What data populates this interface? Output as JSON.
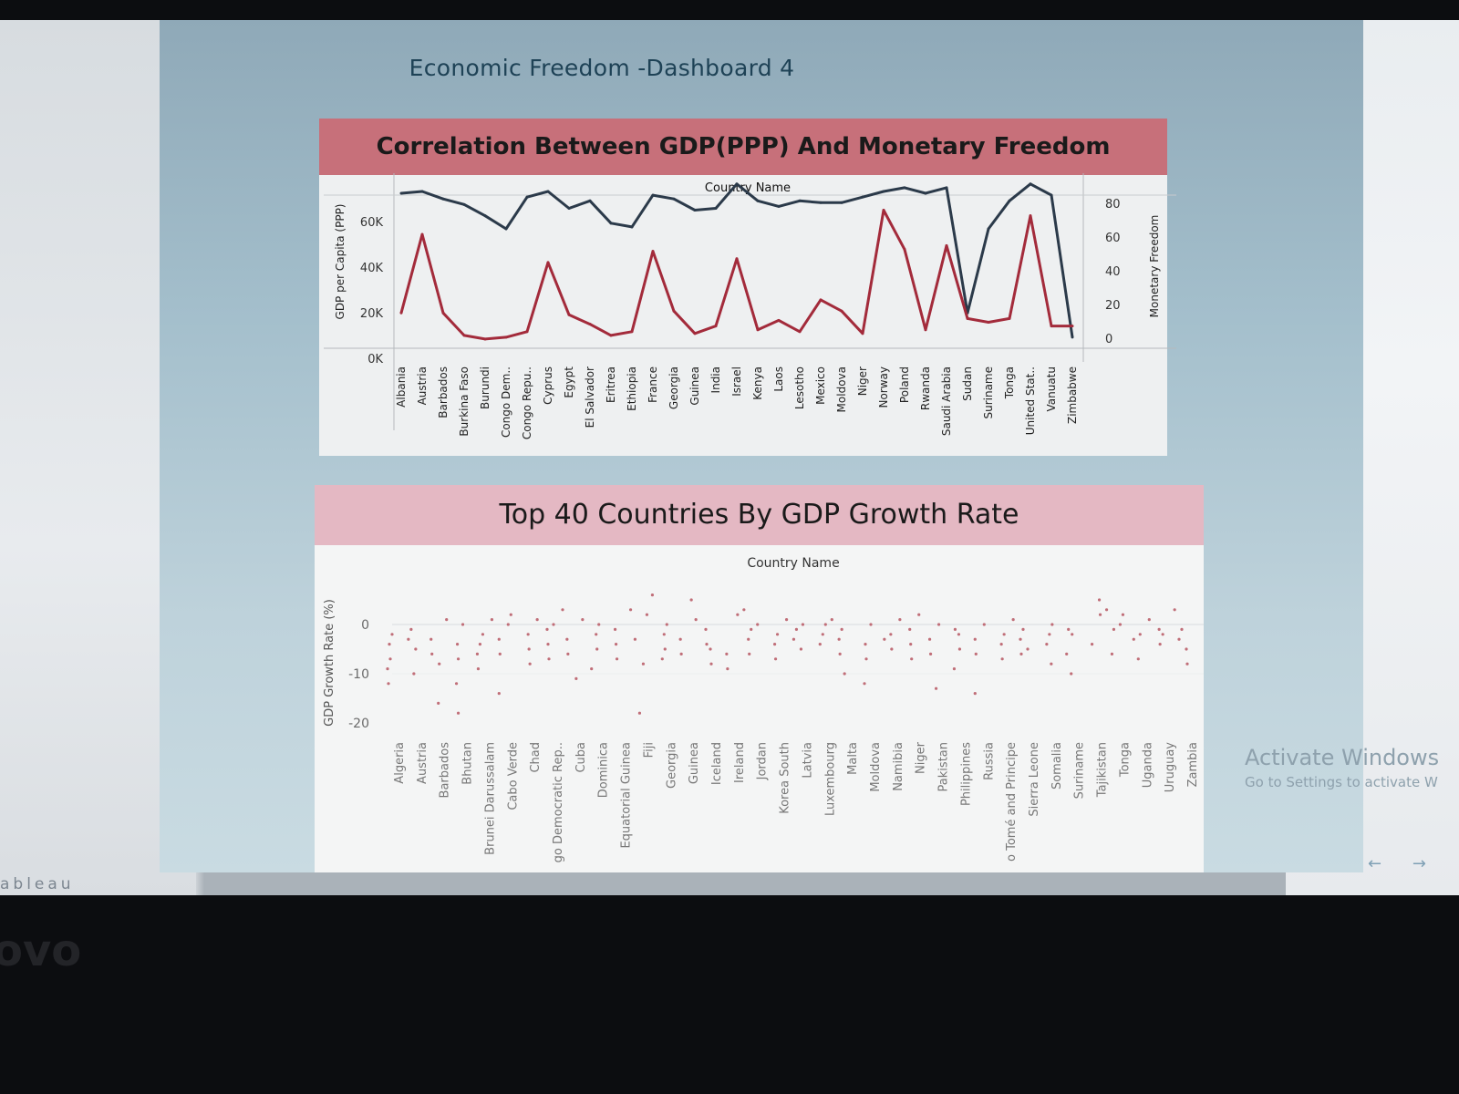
{
  "dashboard": {
    "title": "Economic Freedom -Dashboard 4"
  },
  "taskbar": {
    "brand": "ableau",
    "bezel_logo": "ovo",
    "nav_prev": "←",
    "nav_next": "→"
  },
  "watermark": {
    "title": "Activate Windows",
    "subtitle": "Go to Settings to activate W"
  },
  "colors": {
    "gdp_line": "#2b3a4a",
    "freedom_line": "#a32b3b",
    "band_top": "#c7707a",
    "band_bottom": "#e4b8c3",
    "scatter_dot": "#c06e78"
  },
  "chart_data": [
    {
      "type": "line",
      "title": "Correlation Between GDP(PPP) And Monetary Freedom",
      "xlabel": "Country Name",
      "ylabel": "GDP per Capita (PPP)",
      "y2label": "Monetary Freedom",
      "yticks": [
        "60K",
        "40K",
        "20K",
        "0K"
      ],
      "y2ticks": [
        "80",
        "60",
        "40",
        "20",
        "0"
      ],
      "ylim": [
        0,
        80
      ],
      "y2lim": [
        0,
        80
      ],
      "categories": [
        "Albania",
        "Austria",
        "Barbados",
        "Burkina Faso",
        "Burundi",
        "Congo Dem..",
        "Congo Repu..",
        "Cyprus",
        "Egypt",
        "El Salvador",
        "Eritrea",
        "Ethiopia",
        "France",
        "Georgia",
        "Guinea",
        "India",
        "Israel",
        "Kenya",
        "Laos",
        "Lesotho",
        "Mexico",
        "Moldova",
        "Niger",
        "Norway",
        "Poland",
        "Rwanda",
        "Saudi Arabia",
        "Sudan",
        "Suriname",
        "Tonga",
        "United Stat..",
        "Vanuatu",
        "Zimbabwe"
      ],
      "series": [
        {
          "name": "Monetary Freedom",
          "axis": "right",
          "values": [
            79,
            80,
            76,
            73,
            67,
            60,
            77,
            80,
            71,
            75,
            63,
            61,
            78,
            76,
            70,
            71,
            84,
            75,
            72,
            75,
            74,
            74,
            77,
            80,
            82,
            79,
            82,
            15,
            60,
            75,
            84,
            78,
            2
          ]
        },
        {
          "name": "GDP per Capita (PPP)",
          "axis": "left",
          "values": [
            15,
            57,
            15,
            3,
            1,
            2,
            5,
            42,
            14,
            9,
            3,
            5,
            48,
            16,
            4,
            8,
            44,
            6,
            11,
            5,
            22,
            16,
            4,
            70,
            49,
            6,
            51,
            12,
            10,
            12,
            67,
            8,
            8
          ]
        }
      ]
    },
    {
      "type": "scatter",
      "title": "Top 40 Countries By GDP Growth Rate",
      "xlabel": "Country Name",
      "ylabel": "GDP Growth Rate (%)",
      "yticks": [
        "0",
        "-10",
        "-20"
      ],
      "ylim": [
        -22,
        4
      ],
      "categories": [
        "Algeria",
        "Austria",
        "Barbados",
        "Bhutan",
        "Brunei Darussalam",
        "Cabo Verde",
        "Chad",
        "go Democratic Rep..",
        "Cuba",
        "Dominica",
        "Equatorial Guinea",
        "Fiji",
        "Georgia",
        "Guinea",
        "Iceland",
        "Ireland",
        "Jordan",
        "Korea South",
        "Latvia",
        "Luxembourg",
        "Malta",
        "Moldova",
        "Namibia",
        "Niger",
        "Pakistan",
        "Philippines",
        "Russia",
        "o Tomé and Principe",
        "Sierra Leone",
        "Somalia",
        "Suriname",
        "Tajikistan",
        "Tonga",
        "Uganda",
        "Uruguay",
        "Zambia"
      ],
      "points": [
        [
          0,
          -4
        ],
        [
          0,
          -7
        ],
        [
          0,
          -9
        ],
        [
          0,
          -12
        ],
        [
          0,
          -2
        ],
        [
          1,
          -5
        ],
        [
          1,
          -3
        ],
        [
          1,
          -10
        ],
        [
          1,
          -1
        ],
        [
          2,
          -6
        ],
        [
          2,
          -16
        ],
        [
          2,
          -8
        ],
        [
          2,
          1
        ],
        [
          2,
          -3
        ],
        [
          3,
          -4
        ],
        [
          3,
          -12
        ],
        [
          3,
          0
        ],
        [
          3,
          -7
        ],
        [
          3,
          -18
        ],
        [
          4,
          -2
        ],
        [
          4,
          -6
        ],
        [
          4,
          1
        ],
        [
          4,
          -4
        ],
        [
          4,
          -9
        ],
        [
          5,
          -3
        ],
        [
          5,
          0
        ],
        [
          5,
          -14
        ],
        [
          5,
          2
        ],
        [
          5,
          -6
        ],
        [
          6,
          -5
        ],
        [
          6,
          1
        ],
        [
          6,
          -2
        ],
        [
          6,
          -8
        ],
        [
          7,
          -4
        ],
        [
          7,
          0
        ],
        [
          7,
          -7
        ],
        [
          7,
          3
        ],
        [
          7,
          -1
        ],
        [
          8,
          -6
        ],
        [
          8,
          -3
        ],
        [
          8,
          -11
        ],
        [
          8,
          1
        ],
        [
          9,
          -5
        ],
        [
          9,
          -9
        ],
        [
          9,
          -2
        ],
        [
          9,
          0
        ],
        [
          10,
          -4
        ],
        [
          10,
          3
        ],
        [
          10,
          -7
        ],
        [
          10,
          -1
        ],
        [
          11,
          -8
        ],
        [
          11,
          2
        ],
        [
          11,
          -18
        ],
        [
          11,
          -3
        ],
        [
          11,
          6
        ],
        [
          12,
          -5
        ],
        [
          12,
          -2
        ],
        [
          12,
          0
        ],
        [
          12,
          -7
        ],
        [
          13,
          -3
        ],
        [
          13,
          1
        ],
        [
          13,
          -6
        ],
        [
          13,
          5
        ],
        [
          14,
          -4
        ],
        [
          14,
          -1
        ],
        [
          14,
          -8
        ],
        [
          14,
          -5
        ],
        [
          15,
          -6
        ],
        [
          15,
          2
        ],
        [
          15,
          -9
        ],
        [
          15,
          3
        ],
        [
          16,
          -3
        ],
        [
          16,
          -1
        ],
        [
          16,
          -6
        ],
        [
          16,
          0
        ],
        [
          17,
          -7
        ],
        [
          17,
          -2
        ],
        [
          17,
          -4
        ],
        [
          17,
          1
        ],
        [
          18,
          -1
        ],
        [
          18,
          -3
        ],
        [
          18,
          -5
        ],
        [
          18,
          0
        ],
        [
          19,
          -2
        ],
        [
          19,
          0
        ],
        [
          19,
          1
        ],
        [
          19,
          -4
        ],
        [
          20,
          -6
        ],
        [
          20,
          -10
        ],
        [
          20,
          -3
        ],
        [
          20,
          -1
        ],
        [
          21,
          -4
        ],
        [
          21,
          -12
        ],
        [
          21,
          -7
        ],
        [
          21,
          0
        ],
        [
          22,
          -2
        ],
        [
          22,
          -5
        ],
        [
          22,
          1
        ],
        [
          22,
          -3
        ],
        [
          23,
          -4
        ],
        [
          23,
          -1
        ],
        [
          23,
          -7
        ],
        [
          23,
          2
        ],
        [
          24,
          -3
        ],
        [
          24,
          0
        ],
        [
          24,
          -6
        ],
        [
          24,
          -13
        ],
        [
          25,
          -2
        ],
        [
          25,
          -5
        ],
        [
          25,
          -9
        ],
        [
          25,
          -1
        ],
        [
          26,
          -3
        ],
        [
          26,
          0
        ],
        [
          26,
          -6
        ],
        [
          26,
          -14
        ],
        [
          27,
          -2
        ],
        [
          27,
          -7
        ],
        [
          27,
          -4
        ],
        [
          27,
          1
        ],
        [
          28,
          -3
        ],
        [
          28,
          -6
        ],
        [
          28,
          -1
        ],
        [
          28,
          -5
        ],
        [
          29,
          -2
        ],
        [
          29,
          -8
        ],
        [
          29,
          -4
        ],
        [
          29,
          0
        ],
        [
          30,
          -2
        ],
        [
          30,
          -10
        ],
        [
          30,
          -6
        ],
        [
          30,
          -1
        ],
        [
          31,
          3
        ],
        [
          31,
          5
        ],
        [
          31,
          -4
        ],
        [
          31,
          2
        ],
        [
          32,
          2
        ],
        [
          32,
          -6
        ],
        [
          32,
          -1
        ],
        [
          32,
          0
        ],
        [
          33,
          -3
        ],
        [
          33,
          -2
        ],
        [
          33,
          -7
        ],
        [
          33,
          1
        ],
        [
          34,
          -4
        ],
        [
          34,
          -1
        ],
        [
          34,
          3
        ],
        [
          34,
          -2
        ],
        [
          35,
          -5
        ],
        [
          35,
          -3
        ],
        [
          35,
          -8
        ],
        [
          35,
          -1
        ]
      ]
    }
  ]
}
